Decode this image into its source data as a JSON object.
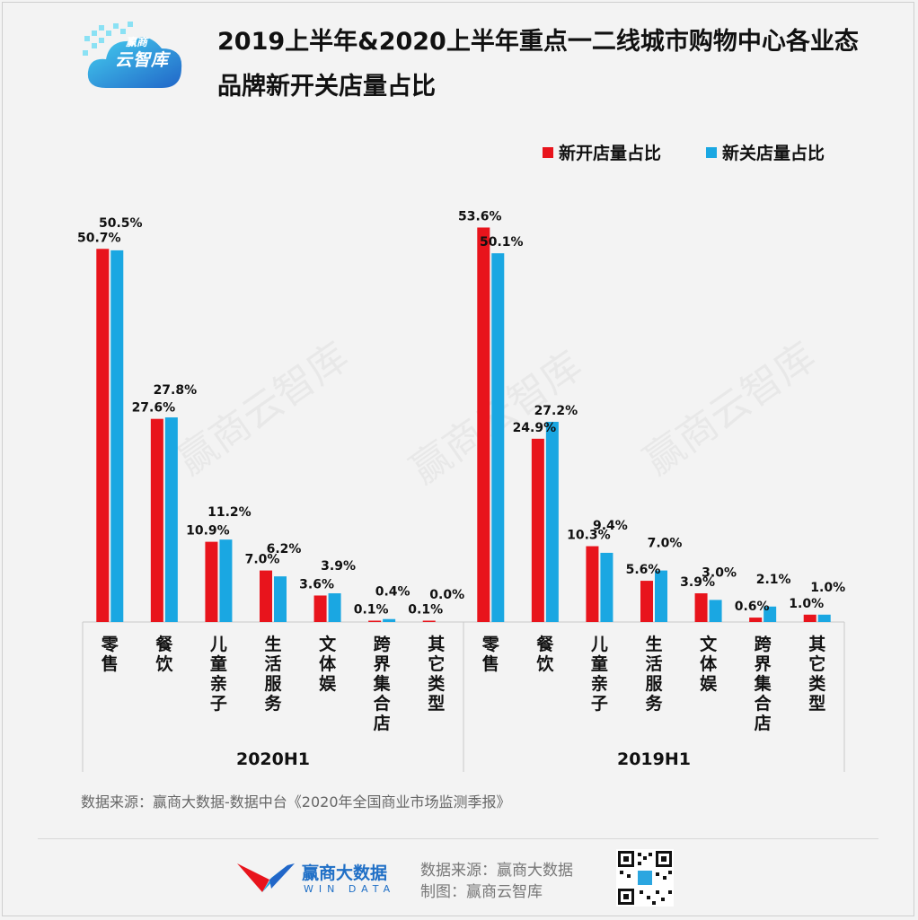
{
  "header": {
    "logo_small": "赢商",
    "logo_text": "云智库",
    "title_line1": "2019上半年&2020上半年重点一二线城市购物中心各业态",
    "title_line2": "品牌新开关店量占比"
  },
  "colors": {
    "open": "#e8141c",
    "close": "#1aa7e2"
  },
  "watermark": "赢商云智库",
  "chart_data": {
    "type": "bar",
    "series": [
      {
        "name": "新开店量占比",
        "color": "#e8141c"
      },
      {
        "name": "新关店量占比",
        "color": "#1aa7e2"
      }
    ],
    "groups": [
      {
        "label": "2020H1",
        "categories": [
          "零售",
          "餐饮",
          "儿童亲子",
          "生活服务",
          "文体娱",
          "跨界集合店",
          "其它类型"
        ],
        "open": [
          50.7,
          27.6,
          10.9,
          7.0,
          3.6,
          0.1,
          0.1
        ],
        "close": [
          50.5,
          27.8,
          11.2,
          6.2,
          3.9,
          0.4,
          0.0
        ],
        "open_labels": [
          "50.7%",
          "27.6%",
          "10.9%",
          "7.0%",
          "3.6%",
          "0.1%",
          "0.1%"
        ],
        "close_labels": [
          "50.5%",
          "27.8%",
          "11.2%",
          "6.2%",
          "3.9%",
          "0.4%",
          "0.0%"
        ]
      },
      {
        "label": "2019H1",
        "categories": [
          "零售",
          "餐饮",
          "儿童亲子",
          "生活服务",
          "文体娱",
          "跨界集合店",
          "其它类型"
        ],
        "open": [
          53.6,
          24.9,
          10.3,
          5.6,
          3.9,
          0.6,
          1.0
        ],
        "close": [
          50.1,
          27.2,
          9.4,
          7.0,
          3.0,
          2.1,
          1.0
        ],
        "open_labels": [
          "53.6%",
          "24.9%",
          "10.3%",
          "5.6%",
          "3.9%",
          "0.6%",
          "1.0%"
        ],
        "close_labels": [
          "50.1%",
          "27.2%",
          "9.4%",
          "7.0%",
          "3.0%",
          "2.1%",
          "1.0%"
        ]
      }
    ],
    "ylim": [
      0,
      55
    ],
    "legend_position": "top-right"
  },
  "footer": {
    "source": "数据来源：赢商大数据-数据中台《2020年全国商业市场监测季报》",
    "brand_name": "赢商大数据",
    "brand_sub": "WIN DATA",
    "src_line1": "数据来源：赢商大数据",
    "src_line2": "制图：赢商云智库"
  }
}
